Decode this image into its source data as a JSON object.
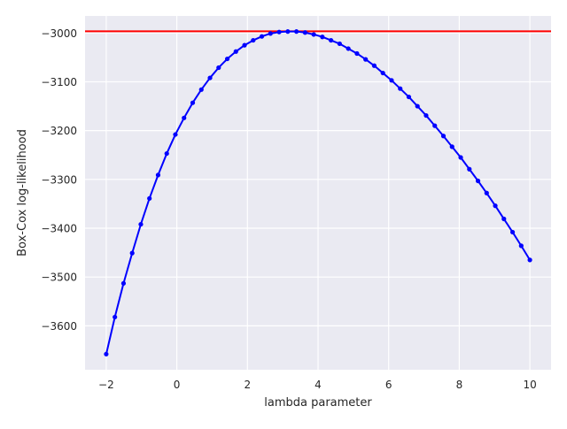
{
  "chart_data": {
    "type": "line",
    "title": "",
    "xlabel": "lambda parameter",
    "ylabel": "Box-Cox log-likelihood",
    "xlim": [
      -2.6,
      10.6
    ],
    "ylim": [
      -3690,
      -2965
    ],
    "xticks": [
      -2,
      0,
      2,
      4,
      6,
      8,
      10
    ],
    "yticks": [
      -3000,
      -3100,
      -3200,
      -3300,
      -3400,
      -3500,
      -3600
    ],
    "grid": true,
    "background": "#eaeaf2",
    "series": [
      {
        "name": "",
        "color": "#0000ff",
        "marker": "dot",
        "x": [
          -2.0,
          -1.755,
          -1.51,
          -1.265,
          -1.02,
          -0.776,
          -0.531,
          -0.286,
          -0.041,
          0.204,
          0.449,
          0.694,
          0.939,
          1.184,
          1.429,
          1.673,
          1.918,
          2.163,
          2.408,
          2.653,
          2.898,
          3.143,
          3.388,
          3.633,
          3.878,
          4.122,
          4.367,
          4.612,
          4.857,
          5.102,
          5.347,
          5.592,
          5.837,
          6.082,
          6.327,
          6.571,
          6.816,
          7.061,
          7.306,
          7.551,
          7.796,
          8.041,
          8.286,
          8.531,
          8.776,
          9.02,
          9.265,
          9.51,
          9.755,
          10.0
        ],
        "y": [
          -3658,
          -3582,
          -3513,
          -3451,
          -3392,
          -3339,
          -3291,
          -3247,
          -3208,
          -3174,
          -3143,
          -3116,
          -3092,
          -3071,
          -3053,
          -3038,
          -3025,
          -3015,
          -3007,
          -3001,
          -2998,
          -2997,
          -2997,
          -2999,
          -3003,
          -3008,
          -3015,
          -3022,
          -3032,
          -3042,
          -3054,
          -3067,
          -3082,
          -3097,
          -3114,
          -3131,
          -3150,
          -3169,
          -3190,
          -3211,
          -3233,
          -3255,
          -3279,
          -3303,
          -3328,
          -3354,
          -3381,
          -3408,
          -3436,
          -3465
        ]
      }
    ],
    "hline": {
      "y": -2996.5,
      "color": "#ff0000"
    }
  }
}
